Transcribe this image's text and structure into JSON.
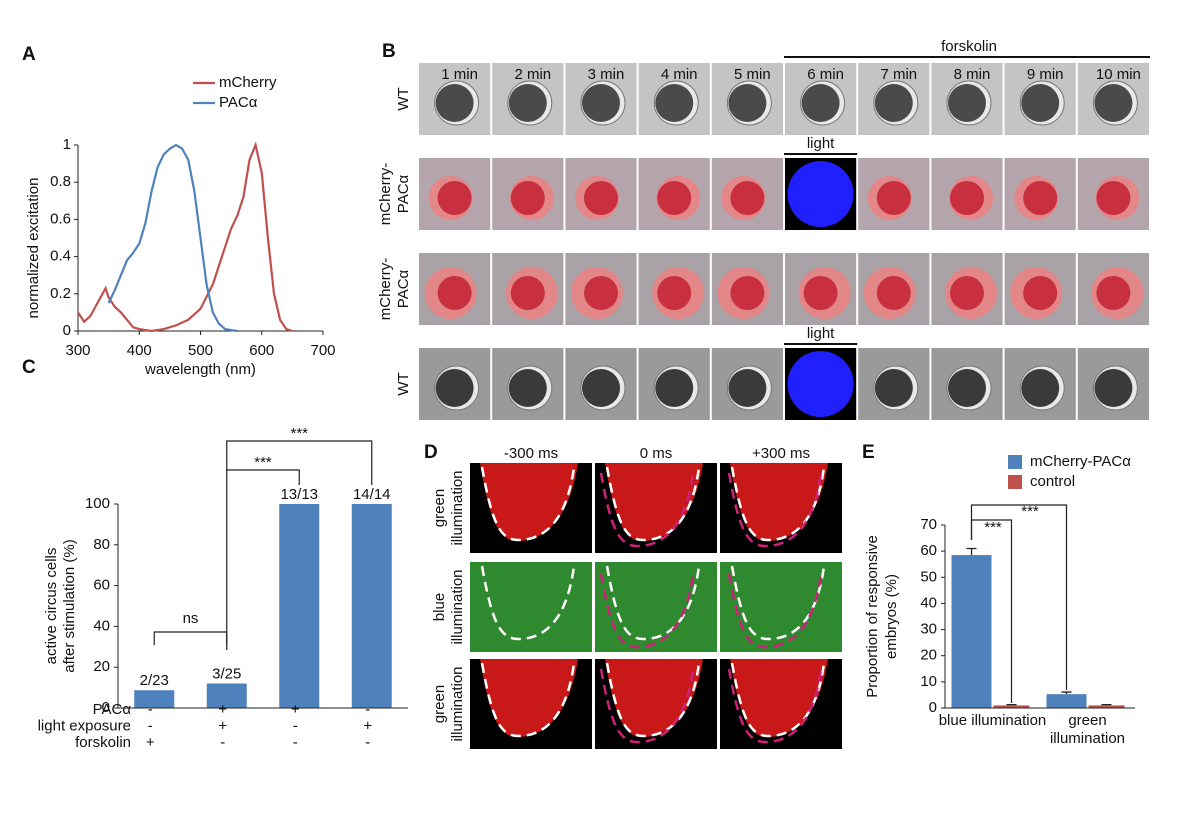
{
  "chart_data": [
    {
      "type": "line",
      "panel_label": "A",
      "xlabel": "wavelength (nm)",
      "ylabel": "normalized excitation",
      "xlim": [
        300,
        700
      ],
      "xticks": [
        300,
        400,
        500,
        600,
        700
      ],
      "ylim": [
        0,
        1
      ],
      "yticks": [
        0,
        0.2,
        0.4,
        0.6,
        0.8,
        1
      ],
      "legend": "top",
      "series": [
        {
          "name": "mCherry",
          "color": "#c0504d",
          "x": [
            300,
            310,
            320,
            330,
            340,
            345,
            350,
            360,
            370,
            380,
            390,
            400,
            420,
            440,
            460,
            480,
            500,
            520,
            540,
            550,
            560,
            570,
            580,
            590,
            600,
            610,
            620,
            630,
            640,
            650
          ],
          "values": [
            0.1,
            0.05,
            0.08,
            0.14,
            0.2,
            0.23,
            0.18,
            0.13,
            0.1,
            0.06,
            0.02,
            0.01,
            0,
            0.01,
            0.03,
            0.06,
            0.12,
            0.25,
            0.45,
            0.55,
            0.62,
            0.72,
            0.92,
            1,
            0.85,
            0.5,
            0.2,
            0.06,
            0.01,
            0
          ]
        },
        {
          "name": "PACα",
          "color": "#4f81bd",
          "x": [
            350,
            360,
            370,
            380,
            390,
            400,
            410,
            420,
            430,
            440,
            450,
            460,
            470,
            480,
            490,
            500,
            510,
            520,
            530,
            540,
            560
          ],
          "values": [
            0.15,
            0.22,
            0.3,
            0.38,
            0.42,
            0.47,
            0.58,
            0.75,
            0.88,
            0.95,
            0.98,
            1,
            0.98,
            0.92,
            0.75,
            0.5,
            0.25,
            0.1,
            0.04,
            0.01,
            0
          ]
        }
      ]
    },
    {
      "type": "bar",
      "panel_label": "C",
      "ylabel": [
        "active circus cells",
        "after stimulation (%)"
      ],
      "categories": [
        null,
        null,
        null,
        null
      ],
      "values": [
        8.7,
        12,
        100,
        100
      ],
      "value_labels": [
        "2/23",
        "3/25",
        "13/13",
        "14/14"
      ],
      "color": "#4f81bd",
      "ylim": [
        0,
        100
      ],
      "yticks": [
        0,
        20,
        40,
        60,
        80,
        100
      ],
      "conditions": [
        {
          "name": "PACα",
          "values": [
            "-",
            "+",
            "+",
            "-"
          ]
        },
        {
          "name": "light exposure",
          "values": [
            "-",
            "+",
            "-",
            "+"
          ]
        },
        {
          "name": "forskolin",
          "values": [
            "+",
            "-",
            "-",
            "-"
          ]
        }
      ],
      "annotations": [
        "ns",
        "***",
        "***"
      ]
    },
    {
      "type": "grouped_bar",
      "panel_label": "E",
      "ylabel": [
        "Proportion of responsive",
        "embryos (%)"
      ],
      "categories": [
        "blue illumination",
        "green illumination"
      ],
      "series": [
        {
          "name": "mCherry-PACα",
          "color": "#4f81bd",
          "values": [
            58.5,
            5.3
          ],
          "errors": [
            2.5,
            0.8
          ]
        },
        {
          "name": "control",
          "color": "#c0504d",
          "values": [
            1,
            1
          ],
          "errors": [
            0.3,
            0.3
          ]
        }
      ],
      "ylim": [
        0,
        70
      ],
      "yticks": [
        0,
        10,
        20,
        30,
        40,
        50,
        60,
        70
      ],
      "legend": "top right",
      "annotations": [
        "***",
        "***"
      ]
    }
  ],
  "panel_b": {
    "panel_label": "B",
    "treatment": "forskolin",
    "light": "light",
    "times": [
      "1 min",
      "2 min",
      "3 min",
      "4 min",
      "5 min",
      "6 min",
      "7 min",
      "8 min",
      "9 min",
      "10 min"
    ],
    "rows": [
      {
        "label": [
          "WT"
        ]
      },
      {
        "label": [
          "mCherry-",
          "PACα"
        ]
      },
      {
        "label": [
          "mCherry-",
          "PACα"
        ]
      },
      {
        "label": [
          "WT"
        ]
      }
    ]
  },
  "panel_d": {
    "panel_label": "D",
    "times": [
      "-300 ms",
      "0 ms",
      "+300 ms"
    ],
    "rows": [
      {
        "label": [
          "green",
          "illumination"
        ]
      },
      {
        "label": [
          "blue",
          "illumination"
        ]
      },
      {
        "label": [
          "green",
          "illumination"
        ]
      }
    ]
  }
}
